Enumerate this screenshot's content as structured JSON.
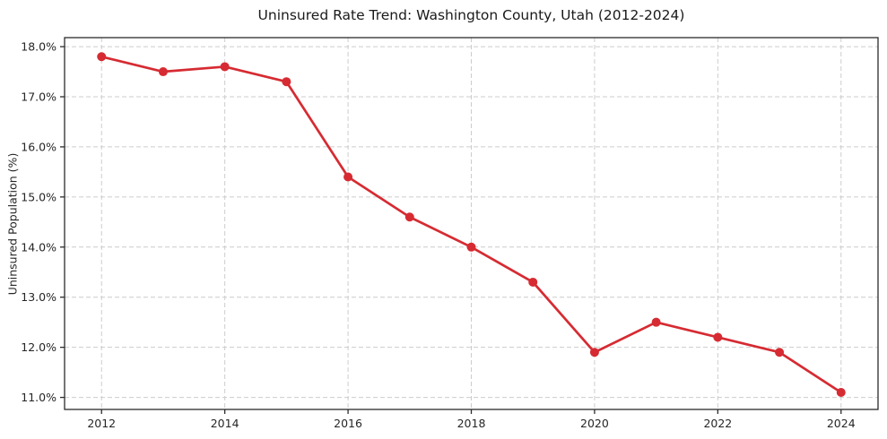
{
  "chart_data": {
    "type": "line",
    "title": "Uninsured Rate Trend: Washington County, Utah (2012-2024)",
    "xlabel": "",
    "ylabel": "Uninsured Population (%)",
    "x": [
      2012,
      2013,
      2014,
      2015,
      2016,
      2017,
      2018,
      2019,
      2020,
      2021,
      2022,
      2023,
      2024
    ],
    "series": [
      {
        "name": "Uninsured rate",
        "values": [
          17.8,
          17.5,
          17.6,
          17.3,
          15.4,
          14.6,
          14.0,
          13.3,
          11.9,
          12.5,
          12.2,
          11.9,
          11.1
        ],
        "color": "#d62b32"
      }
    ],
    "xticks": [
      2012,
      2014,
      2016,
      2018,
      2020,
      2022,
      2024
    ],
    "yticks": [
      11.0,
      12.0,
      13.0,
      14.0,
      15.0,
      16.0,
      17.0,
      18.0
    ],
    "ytick_suffix": "%",
    "xlim": [
      2011.4,
      2024.6
    ],
    "ylim": [
      10.76,
      18.18
    ],
    "grid": true,
    "legend": false,
    "grid_color": "#cccccc",
    "axis_color": "#2b2b2b",
    "text_color": "#262626",
    "background_color": "#ffffff",
    "line_width": 2.7,
    "marker_radius": 5
  }
}
